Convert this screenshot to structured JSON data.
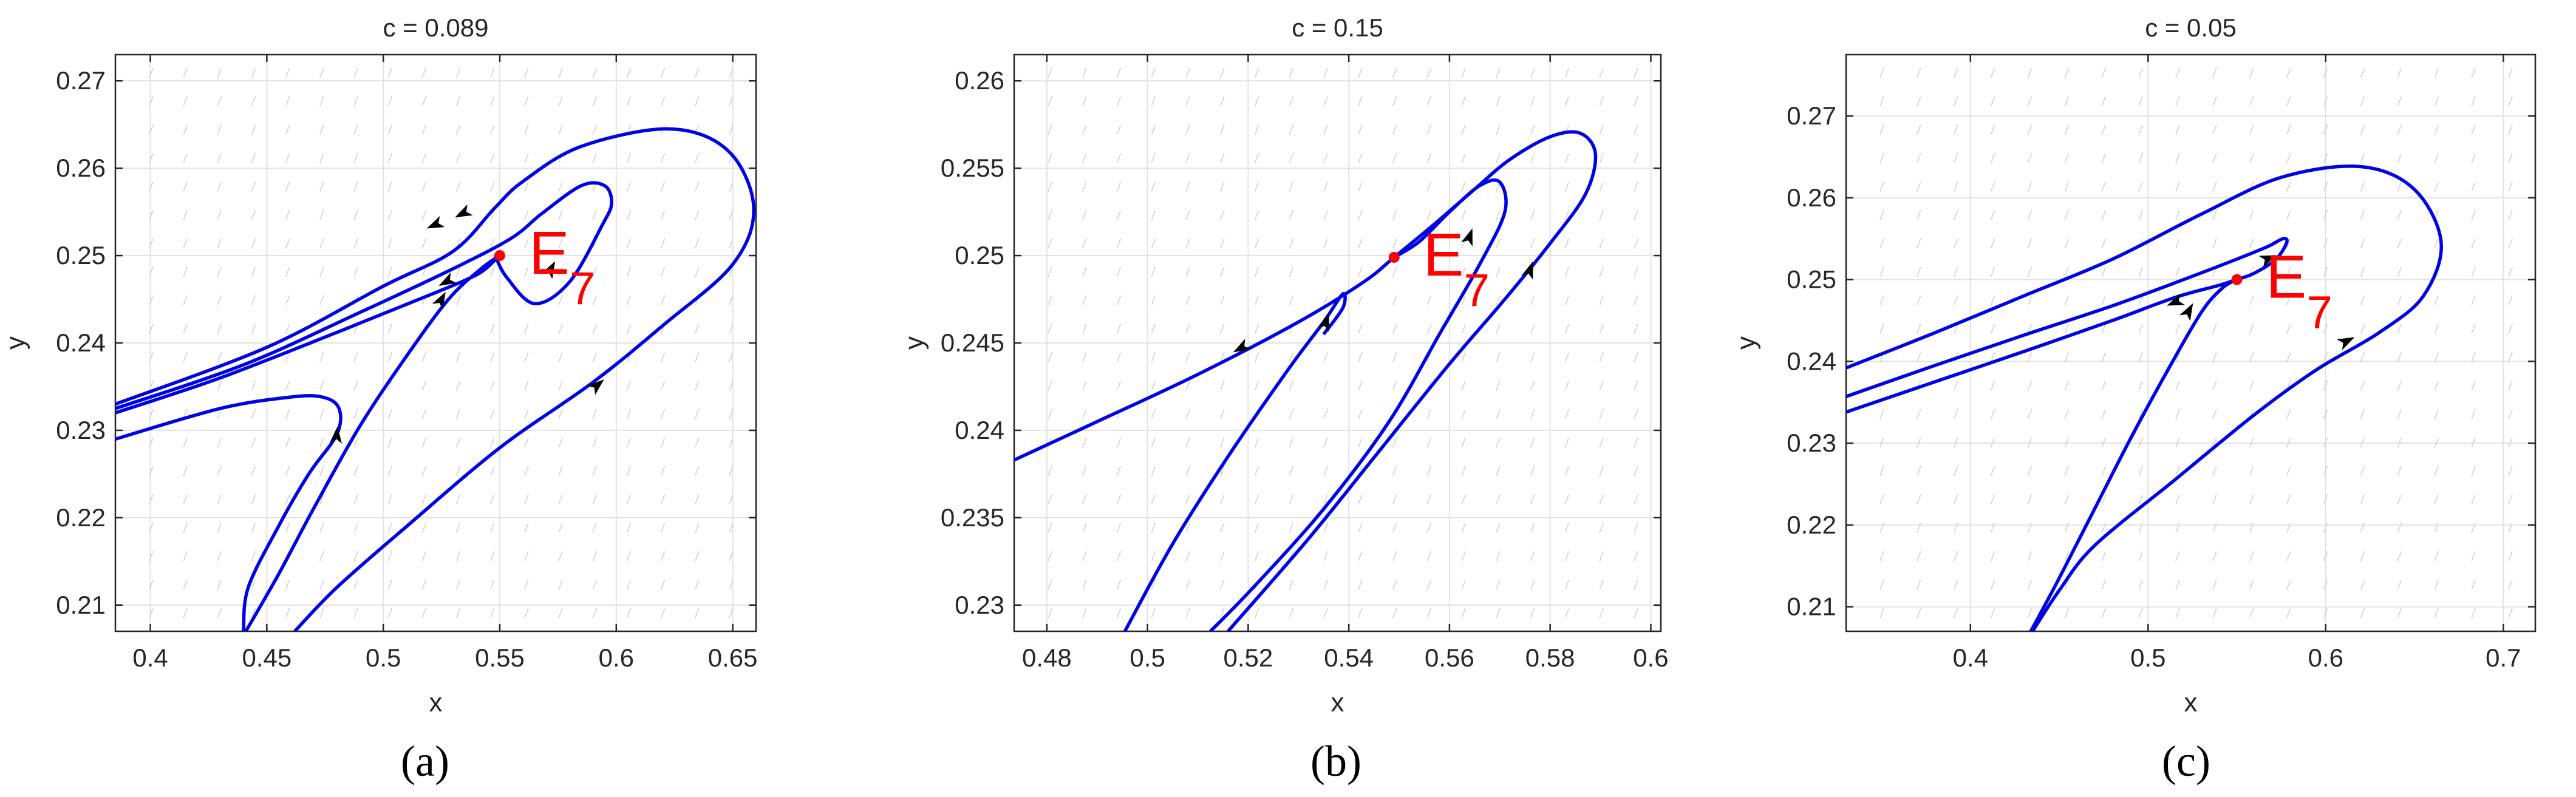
{
  "chart_data": [
    {
      "type": "phase-portrait",
      "panel_label": "(a)",
      "title": "c = 0.089",
      "xlabel": "x",
      "ylabel": "y",
      "xlim": [
        0.385,
        0.66
      ],
      "ylim": [
        0.207,
        0.273
      ],
      "xticks": [
        0.4,
        0.45,
        0.5,
        0.55,
        0.6,
        0.65
      ],
      "yticks": [
        0.21,
        0.22,
        0.23,
        0.24,
        0.25,
        0.26,
        0.27
      ],
      "grid": true,
      "equilibrium": {
        "label": "E",
        "subscript": "7",
        "x": 0.55,
        "y": 0.25
      },
      "trajectories": [
        {
          "points": [
            [
              0.385,
              0.233
            ],
            [
              0.45,
              0.2395
            ],
            [
              0.5,
              0.2465
            ],
            [
              0.53,
              0.2505
            ],
            [
              0.548,
              0.2555
            ],
            [
              0.56,
              0.2585
            ],
            [
              0.585,
              0.2625
            ],
            [
              0.623,
              0.2645
            ],
            [
              0.648,
              0.262
            ],
            [
              0.659,
              0.2555
            ],
            [
              0.65,
              0.249
            ],
            [
              0.62,
              0.242
            ],
            [
              0.59,
              0.2355
            ],
            [
              0.55,
              0.228
            ],
            [
              0.51,
              0.219
            ],
            [
              0.48,
              0.212
            ],
            [
              0.462,
              0.207
            ]
          ]
        },
        {
          "points": [
            [
              0.385,
              0.2325
            ],
            [
              0.44,
              0.2375
            ],
            [
              0.49,
              0.2435
            ],
            [
              0.53,
              0.2485
            ],
            [
              0.555,
              0.252
            ],
            [
              0.568,
              0.2548
            ],
            [
              0.585,
              0.258
            ],
            [
              0.595,
              0.258
            ],
            [
              0.598,
              0.256
            ],
            [
              0.594,
              0.2535
            ],
            [
              0.58,
              0.247
            ],
            [
              0.565,
              0.2445
            ],
            [
              0.553,
              0.2475
            ],
            [
              0.548,
              0.25
            ]
          ]
        },
        {
          "points": [
            [
              0.385,
              0.232
            ],
            [
              0.43,
              0.236
            ],
            [
              0.48,
              0.2412
            ],
            [
              0.52,
              0.2455
            ],
            [
              0.54,
              0.2478
            ],
            [
              0.548,
              0.2495
            ],
            [
              0.55,
              0.25
            ]
          ]
        },
        {
          "points": [
            [
              0.385,
              0.229
            ],
            [
              0.43,
              0.2325
            ],
            [
              0.46,
              0.2338
            ],
            [
              0.474,
              0.2338
            ],
            [
              0.481,
              0.2325
            ],
            [
              0.48,
              0.2295
            ],
            [
              0.468,
              0.225
            ],
            [
              0.455,
              0.219
            ],
            [
              0.442,
              0.212
            ],
            [
              0.44,
              0.207
            ]
          ]
        },
        {
          "points": [
            [
              0.441,
              0.207
            ],
            [
              0.455,
              0.2135
            ],
            [
              0.47,
              0.221
            ],
            [
              0.49,
              0.2305
            ],
            [
              0.51,
              0.2385
            ],
            [
              0.528,
              0.245
            ],
            [
              0.542,
              0.2485
            ],
            [
              0.55,
              0.25
            ]
          ]
        }
      ],
      "arrows": [
        [
          0.522,
          0.2535,
          -1,
          -0.45
        ],
        [
          0.534,
          0.2548,
          -1,
          -0.5
        ],
        [
          0.527,
          0.247,
          -1,
          -0.55
        ],
        [
          0.48,
          0.2295,
          0.1,
          1
        ],
        [
          0.525,
          0.245,
          0.55,
          1
        ],
        [
          0.572,
          0.2485,
          0.55,
          1
        ],
        [
          0.592,
          0.2352,
          1,
          0.85
        ]
      ]
    },
    {
      "type": "phase-portrait",
      "panel_label": "(b)",
      "title": "c = 0.15",
      "xlabel": "x",
      "ylabel": "y",
      "xlim": [
        0.4735,
        0.602
      ],
      "ylim": [
        0.2285,
        0.2615
      ],
      "xticks": [
        0.48,
        0.5,
        0.52,
        0.54,
        0.56,
        0.58,
        0.6
      ],
      "yticks": [
        0.23,
        0.235,
        0.24,
        0.245,
        0.25,
        0.255,
        0.26
      ],
      "grid": true,
      "equilibrium": {
        "label": "E",
        "subscript": "7",
        "x": 0.549,
        "y": 0.2499
      },
      "trajectories": [
        {
          "points": [
            [
              0.4735,
              0.2383
            ],
            [
              0.49,
              0.2405
            ],
            [
              0.51,
              0.2432
            ],
            [
              0.53,
              0.2462
            ],
            [
              0.543,
              0.2485
            ],
            [
              0.549,
              0.2499
            ],
            [
              0.557,
              0.2518
            ],
            [
              0.565,
              0.2538
            ],
            [
              0.572,
              0.2555
            ],
            [
              0.58,
              0.2568
            ],
            [
              0.586,
              0.257
            ],
            [
              0.589,
              0.2558
            ],
            [
              0.587,
              0.2535
            ],
            [
              0.58,
              0.2507
            ],
            [
              0.571,
              0.2475
            ],
            [
              0.56,
              0.2438
            ],
            [
              0.546,
              0.2388
            ],
            [
              0.532,
              0.2338
            ],
            [
              0.516,
              0.2285
            ]
          ]
        },
        {
          "points": [
            [
              0.549,
              0.2499
            ],
            [
              0.554,
              0.2508
            ],
            [
              0.56,
              0.2525
            ],
            [
              0.566,
              0.254
            ],
            [
              0.57,
              0.2542
            ],
            [
              0.571,
              0.2525
            ],
            [
              0.566,
              0.2495
            ],
            [
              0.558,
              0.2455
            ],
            [
              0.548,
              0.2405
            ],
            [
              0.535,
              0.2355
            ],
            [
              0.521,
              0.231
            ],
            [
              0.5125,
              0.2285
            ]
          ]
        },
        {
          "points": [
            [
              0.4955,
              0.2285
            ],
            [
              0.505,
              0.2335
            ],
            [
              0.516,
              0.2385
            ],
            [
              0.528,
              0.2435
            ],
            [
              0.535,
              0.2462
            ],
            [
              0.5388,
              0.2478
            ],
            [
              0.5388,
              0.247
            ],
            [
              0.535,
              0.2455
            ]
          ]
        }
      ],
      "arrows": [
        [
          0.5185,
          0.2447,
          -1,
          -0.55
        ],
        [
          0.5355,
          0.2462,
          0.35,
          1
        ],
        [
          0.564,
          0.2511,
          0.35,
          1
        ],
        [
          0.576,
          0.2492,
          0.35,
          1
        ]
      ]
    },
    {
      "type": "phase-portrait",
      "panel_label": "(c)",
      "title": "c = 0.05",
      "xlabel": "x",
      "ylabel": "y",
      "xlim": [
        0.33,
        0.718
      ],
      "ylim": [
        0.207,
        0.2775
      ],
      "xticks": [
        0.4,
        0.5,
        0.6,
        0.7
      ],
      "yticks": [
        0.21,
        0.22,
        0.23,
        0.24,
        0.25,
        0.26,
        0.27
      ],
      "grid": true,
      "equilibrium": {
        "label": "E",
        "subscript": "7",
        "x": 0.55,
        "y": 0.25
      },
      "trajectories": [
        {
          "points": [
            [
              0.33,
              0.2392
            ],
            [
              0.38,
              0.2435
            ],
            [
              0.43,
              0.248
            ],
            [
              0.48,
              0.2525
            ],
            [
              0.53,
              0.258
            ],
            [
              0.575,
              0.2625
            ],
            [
              0.62,
              0.2638
            ],
            [
              0.65,
              0.261
            ],
            [
              0.665,
              0.2545
            ],
            [
              0.655,
              0.248
            ],
            [
              0.63,
              0.2435
            ],
            [
              0.595,
              0.239
            ],
            [
              0.56,
              0.2335
            ],
            [
              0.515,
              0.2255
            ],
            [
              0.47,
              0.2175
            ],
            [
              0.45,
              0.212
            ],
            [
              0.435,
              0.207
            ]
          ]
        },
        {
          "points": [
            [
              0.33,
              0.2357
            ],
            [
              0.38,
              0.2395
            ],
            [
              0.43,
              0.2432
            ],
            [
              0.48,
              0.2468
            ],
            [
              0.52,
              0.25
            ],
            [
              0.55,
              0.2525
            ],
            [
              0.567,
              0.254
            ],
            [
              0.576,
              0.255
            ],
            [
              0.578,
              0.2545
            ],
            [
              0.572,
              0.2525
            ],
            [
              0.56,
              0.2508
            ],
            [
              0.55,
              0.25
            ]
          ]
        },
        {
          "points": [
            [
              0.33,
              0.2338
            ],
            [
              0.38,
              0.2375
            ],
            [
              0.43,
              0.2412
            ],
            [
              0.48,
              0.245
            ],
            [
              0.515,
              0.2478
            ],
            [
              0.54,
              0.2493
            ],
            [
              0.55,
              0.25
            ]
          ]
        },
        {
          "points": [
            [
              0.434,
              0.207
            ],
            [
              0.45,
              0.2135
            ],
            [
              0.47,
              0.222
            ],
            [
              0.49,
              0.2305
            ],
            [
              0.51,
              0.2385
            ],
            [
              0.53,
              0.246
            ],
            [
              0.542,
              0.249
            ],
            [
              0.55,
              0.25
            ]
          ]
        }
      ],
      "arrows": [
        [
          0.515,
          0.2472,
          -1,
          -0.4
        ],
        [
          0.568,
          0.2526,
          1,
          0.4
        ],
        [
          0.523,
          0.2462,
          0.55,
          1
        ],
        [
          0.612,
          0.2425,
          1,
          0.5
        ]
      ]
    }
  ]
}
